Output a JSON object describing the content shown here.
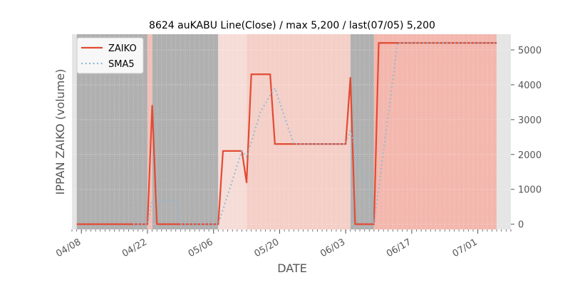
{
  "chart_data": {
    "type": "line",
    "title": "8624 auKABU Line(Close) / max 5,200 / last(07/05) 5,200",
    "xlabel": "DATE",
    "ylabel": "IPPAN ZAIKO (volume)",
    "x_range": [
      "2024-04-06",
      "2024-07-08"
    ],
    "ylim": [
      -150,
      5450
    ],
    "y_ticks": [
      0,
      1000,
      2000,
      3000,
      4000,
      5000
    ],
    "x_ticks": [
      {
        "date": "2024-04-08",
        "label": "04/08"
      },
      {
        "date": "2024-04-22",
        "label": "04/22"
      },
      {
        "date": "2024-05-06",
        "label": "05/06"
      },
      {
        "date": "2024-05-20",
        "label": "05/20"
      },
      {
        "date": "2024-06-03",
        "label": "06/03"
      },
      {
        "date": "2024-06-17",
        "label": "06/17"
      },
      {
        "date": "2024-07-01",
        "label": "07/01"
      }
    ],
    "legend_position": "top-left",
    "grid": true,
    "series": [
      {
        "name": "ZAIKO",
        "color": "#E24A33",
        "style": "solid",
        "points": [
          [
            "2024-04-07",
            0
          ],
          [
            "2024-04-08",
            0
          ],
          [
            "2024-04-09",
            0
          ],
          [
            "2024-04-10",
            0
          ],
          [
            "2024-04-11",
            0
          ],
          [
            "2024-04-12",
            0
          ],
          [
            "2024-04-13",
            0
          ],
          [
            "2024-04-14",
            0
          ],
          [
            "2024-04-15",
            0
          ],
          [
            "2024-04-16",
            0
          ],
          [
            "2024-04-17",
            0
          ],
          [
            "2024-04-18",
            0
          ],
          [
            "2024-04-19",
            0
          ],
          [
            "2024-04-20",
            0
          ],
          [
            "2024-04-21",
            0
          ],
          [
            "2024-04-22",
            0
          ],
          [
            "2024-04-23",
            3400
          ],
          [
            "2024-04-24",
            0
          ],
          [
            "2024-04-25",
            0
          ],
          [
            "2024-04-26",
            0
          ],
          [
            "2024-04-27",
            0
          ],
          [
            "2024-04-28",
            0
          ],
          [
            "2024-04-29",
            0
          ],
          [
            "2024-04-30",
            0
          ],
          [
            "2024-05-01",
            0
          ],
          [
            "2024-05-02",
            0
          ],
          [
            "2024-05-03",
            0
          ],
          [
            "2024-05-04",
            0
          ],
          [
            "2024-05-05",
            0
          ],
          [
            "2024-05-06",
            0
          ],
          [
            "2024-05-07",
            0
          ],
          [
            "2024-05-08",
            2100
          ],
          [
            "2024-05-09",
            2100
          ],
          [
            "2024-05-10",
            2100
          ],
          [
            "2024-05-11",
            2100
          ],
          [
            "2024-05-12",
            2100
          ],
          [
            "2024-05-13",
            1200
          ],
          [
            "2024-05-14",
            4300
          ],
          [
            "2024-05-15",
            4300
          ],
          [
            "2024-05-16",
            4300
          ],
          [
            "2024-05-17",
            4300
          ],
          [
            "2024-05-18",
            4300
          ],
          [
            "2024-05-19",
            2300
          ],
          [
            "2024-05-20",
            2300
          ],
          [
            "2024-05-21",
            2300
          ],
          [
            "2024-05-22",
            2300
          ],
          [
            "2024-05-23",
            2300
          ],
          [
            "2024-05-24",
            2300
          ],
          [
            "2024-05-25",
            2300
          ],
          [
            "2024-05-26",
            2300
          ],
          [
            "2024-05-27",
            2300
          ],
          [
            "2024-05-28",
            2300
          ],
          [
            "2024-05-29",
            2300
          ],
          [
            "2024-05-30",
            2300
          ],
          [
            "2024-05-31",
            2300
          ],
          [
            "2024-06-01",
            2300
          ],
          [
            "2024-06-02",
            2300
          ],
          [
            "2024-06-03",
            2300
          ],
          [
            "2024-06-04",
            4200
          ],
          [
            "2024-06-05",
            0
          ],
          [
            "2024-06-06",
            0
          ],
          [
            "2024-06-07",
            0
          ],
          [
            "2024-06-08",
            0
          ],
          [
            "2024-06-09",
            0
          ],
          [
            "2024-06-10",
            5200
          ],
          [
            "2024-06-11",
            5200
          ],
          [
            "2024-06-12",
            5200
          ],
          [
            "2024-06-13",
            5200
          ],
          [
            "2024-06-14",
            5200
          ],
          [
            "2024-06-15",
            5200
          ],
          [
            "2024-06-16",
            5200
          ],
          [
            "2024-06-17",
            5200
          ],
          [
            "2024-06-18",
            5200
          ],
          [
            "2024-06-19",
            5200
          ],
          [
            "2024-06-20",
            5200
          ],
          [
            "2024-06-21",
            5200
          ],
          [
            "2024-06-22",
            5200
          ],
          [
            "2024-06-23",
            5200
          ],
          [
            "2024-06-24",
            5200
          ],
          [
            "2024-06-25",
            5200
          ],
          [
            "2024-06-26",
            5200
          ],
          [
            "2024-06-27",
            5200
          ],
          [
            "2024-06-28",
            5200
          ],
          [
            "2024-06-29",
            5200
          ],
          [
            "2024-06-30",
            5200
          ],
          [
            "2024-07-01",
            5200
          ],
          [
            "2024-07-02",
            5200
          ],
          [
            "2024-07-03",
            5200
          ],
          [
            "2024-07-04",
            5200
          ],
          [
            "2024-07-05",
            5200
          ]
        ]
      },
      {
        "name": "SMA5",
        "color": "#8EBAD6",
        "style": "dotted",
        "points": [
          [
            "2024-04-19",
            0
          ],
          [
            "2024-04-20",
            0
          ],
          [
            "2024-04-21",
            0
          ],
          [
            "2024-04-22",
            0
          ],
          [
            "2024-04-23",
            680
          ],
          [
            "2024-04-24",
            680
          ],
          [
            "2024-04-25",
            680
          ],
          [
            "2024-04-26",
            680
          ],
          [
            "2024-04-27",
            680
          ],
          [
            "2024-04-28",
            680
          ],
          [
            "2024-04-29",
            0
          ],
          [
            "2024-04-30",
            0
          ],
          [
            "2024-05-01",
            0
          ],
          [
            "2024-05-02",
            0
          ],
          [
            "2024-05-03",
            0
          ],
          [
            "2024-05-04",
            0
          ],
          [
            "2024-05-05",
            0
          ],
          [
            "2024-05-06",
            0
          ],
          [
            "2024-05-07",
            0
          ],
          [
            "2024-05-08",
            420
          ],
          [
            "2024-05-09",
            840
          ],
          [
            "2024-05-10",
            1260
          ],
          [
            "2024-05-11",
            1680
          ],
          [
            "2024-05-12",
            2100
          ],
          [
            "2024-05-13",
            1920
          ],
          [
            "2024-05-14",
            2360
          ],
          [
            "2024-05-15",
            2800
          ],
          [
            "2024-05-16",
            3240
          ],
          [
            "2024-05-17",
            3460
          ],
          [
            "2024-05-18",
            3700
          ],
          [
            "2024-05-19",
            3900
          ],
          [
            "2024-05-20",
            3500
          ],
          [
            "2024-05-21",
            3100
          ],
          [
            "2024-05-22",
            2700
          ],
          [
            "2024-05-23",
            2300
          ],
          [
            "2024-05-24",
            2300
          ],
          [
            "2024-05-25",
            2300
          ],
          [
            "2024-05-26",
            2300
          ],
          [
            "2024-05-27",
            2300
          ],
          [
            "2024-05-28",
            2300
          ],
          [
            "2024-05-29",
            2300
          ],
          [
            "2024-05-30",
            2300
          ],
          [
            "2024-05-31",
            2300
          ],
          [
            "2024-06-01",
            2300
          ],
          [
            "2024-06-02",
            2300
          ],
          [
            "2024-06-03",
            2300
          ],
          [
            "2024-06-04",
            2680
          ],
          [
            "2024-06-05",
            2220
          ],
          [
            "2024-06-06",
            1760
          ],
          [
            "2024-06-07",
            1300
          ],
          [
            "2024-06-08",
            840
          ],
          [
            "2024-06-09",
            0
          ],
          [
            "2024-06-10",
            1040
          ],
          [
            "2024-06-11",
            2080
          ],
          [
            "2024-06-12",
            3120
          ],
          [
            "2024-06-13",
            4160
          ],
          [
            "2024-06-14",
            5200
          ],
          [
            "2024-06-15",
            5200
          ],
          [
            "2024-06-16",
            5200
          ],
          [
            "2024-06-17",
            5200
          ],
          [
            "2024-06-18",
            5200
          ],
          [
            "2024-06-19",
            5200
          ],
          [
            "2024-06-20",
            5200
          ],
          [
            "2024-06-21",
            5200
          ],
          [
            "2024-06-22",
            5200
          ],
          [
            "2024-06-23",
            5200
          ],
          [
            "2024-06-24",
            5200
          ],
          [
            "2024-06-25",
            5200
          ],
          [
            "2024-06-26",
            5200
          ],
          [
            "2024-06-27",
            5200
          ],
          [
            "2024-06-28",
            5200
          ],
          [
            "2024-06-29",
            5200
          ],
          [
            "2024-06-30",
            5200
          ],
          [
            "2024-07-01",
            5200
          ],
          [
            "2024-07-02",
            5200
          ],
          [
            "2024-07-03",
            5200
          ],
          [
            "2024-07-04",
            5200
          ],
          [
            "2024-07-05",
            5200
          ]
        ]
      }
    ],
    "background_bands": [
      {
        "start": "2024-04-06",
        "end": "2024-04-07",
        "color": "#E5E5E5"
      },
      {
        "start": "2024-04-07",
        "end": "2024-04-22",
        "color": "#B0B0B0"
      },
      {
        "start": "2024-04-22",
        "end": "2024-04-23",
        "color": "#F2C0B8"
      },
      {
        "start": "2024-04-23",
        "end": "2024-05-07",
        "color": "#B0B0B0"
      },
      {
        "start": "2024-05-07",
        "end": "2024-05-13",
        "color": "#F6DCD7"
      },
      {
        "start": "2024-05-13",
        "end": "2024-06-04",
        "color": "#F4CFC7"
      },
      {
        "start": "2024-06-04",
        "end": "2024-06-09",
        "color": "#B0B0B0"
      },
      {
        "start": "2024-06-09",
        "end": "2024-07-05",
        "color": "#F3B7AD"
      },
      {
        "start": "2024-07-05",
        "end": "2024-07-08",
        "color": "#E5E5E5"
      }
    ]
  }
}
